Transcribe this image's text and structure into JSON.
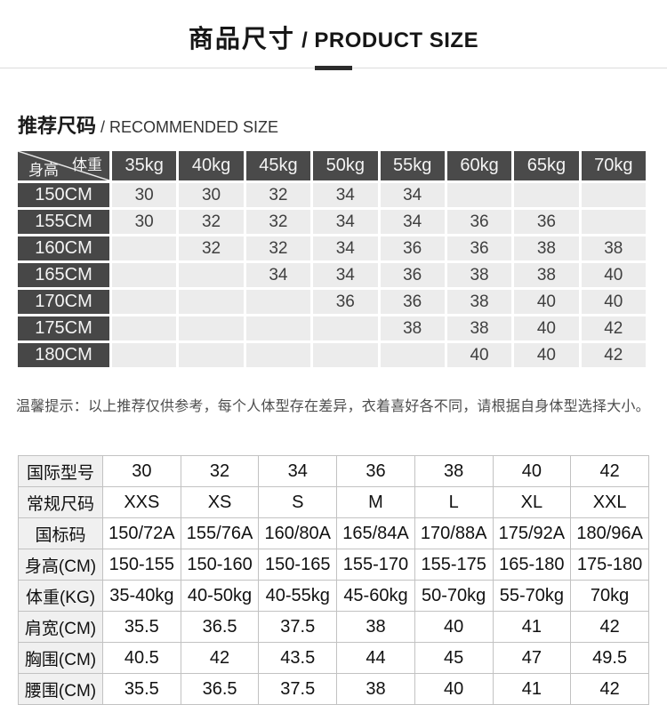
{
  "header": {
    "title_cn": "商品尺寸",
    "title_en": " / PRODUCT SIZE"
  },
  "recommended": {
    "heading_cn": "推荐尺码",
    "heading_en": " / RECOMMENDED SIZE",
    "corner_top_right": "体重",
    "corner_bottom_left": "身高",
    "weight_headers": [
      "35kg",
      "40kg",
      "45kg",
      "50kg",
      "55kg",
      "60kg",
      "65kg",
      "70kg"
    ],
    "rows": [
      {
        "height": "150CM",
        "values": [
          "30",
          "30",
          "32",
          "34",
          "34",
          "",
          "",
          ""
        ]
      },
      {
        "height": "155CM",
        "values": [
          "30",
          "32",
          "32",
          "34",
          "34",
          "36",
          "36",
          ""
        ]
      },
      {
        "height": "160CM",
        "values": [
          "",
          "32",
          "32",
          "34",
          "36",
          "36",
          "38",
          "38"
        ]
      },
      {
        "height": "165CM",
        "values": [
          "",
          "",
          "34",
          "34",
          "36",
          "38",
          "38",
          "40"
        ]
      },
      {
        "height": "170CM",
        "values": [
          "",
          "",
          "",
          "36",
          "36",
          "38",
          "40",
          "40"
        ]
      },
      {
        "height": "175CM",
        "values": [
          "",
          "",
          "",
          "",
          "38",
          "38",
          "40",
          "42"
        ]
      },
      {
        "height": "180CM",
        "values": [
          "",
          "",
          "",
          "",
          "",
          "40",
          "40",
          "42"
        ]
      }
    ]
  },
  "note": "温馨提示：以上推荐仅供参考，每个人体型存在差异，衣着喜好各不同，请根据自身体型选择大小。",
  "spec_table": {
    "rows": [
      {
        "label": "国际型号",
        "values": [
          "30",
          "32",
          "34",
          "36",
          "38",
          "40",
          "42"
        ]
      },
      {
        "label": "常规尺码",
        "values": [
          "XXS",
          "XS",
          "S",
          "M",
          "L",
          "XL",
          "XXL"
        ]
      },
      {
        "label": "国标码",
        "values": [
          "150/72A",
          "155/76A",
          "160/80A",
          "165/84A",
          "170/88A",
          "175/92A",
          "180/96A"
        ]
      },
      {
        "label": "身高(CM)",
        "values": [
          "150-155",
          "150-160",
          "150-165",
          "155-170",
          "155-175",
          "165-180",
          "175-180"
        ]
      },
      {
        "label": "体重(KG)",
        "values": [
          "35-40kg",
          "40-50kg",
          "40-55kg",
          "45-60kg",
          "50-70kg",
          "55-70kg",
          "70kg"
        ]
      },
      {
        "label": "肩宽(CM)",
        "values": [
          "35.5",
          "36.5",
          "37.5",
          "38",
          "40",
          "41",
          "42"
        ]
      },
      {
        "label": "胸围(CM)",
        "values": [
          "40.5",
          "42",
          "43.5",
          "44",
          "45",
          "47",
          "49.5"
        ]
      },
      {
        "label": "腰围(CM)",
        "values": [
          "35.5",
          "36.5",
          "37.5",
          "38",
          "40",
          "41",
          "42"
        ]
      }
    ]
  },
  "colors": {
    "dark_cell": "#4a4a4a",
    "light_cell": "#ececec",
    "spec_border": "#c2c2c2",
    "spec_label_bg": "#f0f0f0",
    "dash": "#2b2b2b"
  }
}
